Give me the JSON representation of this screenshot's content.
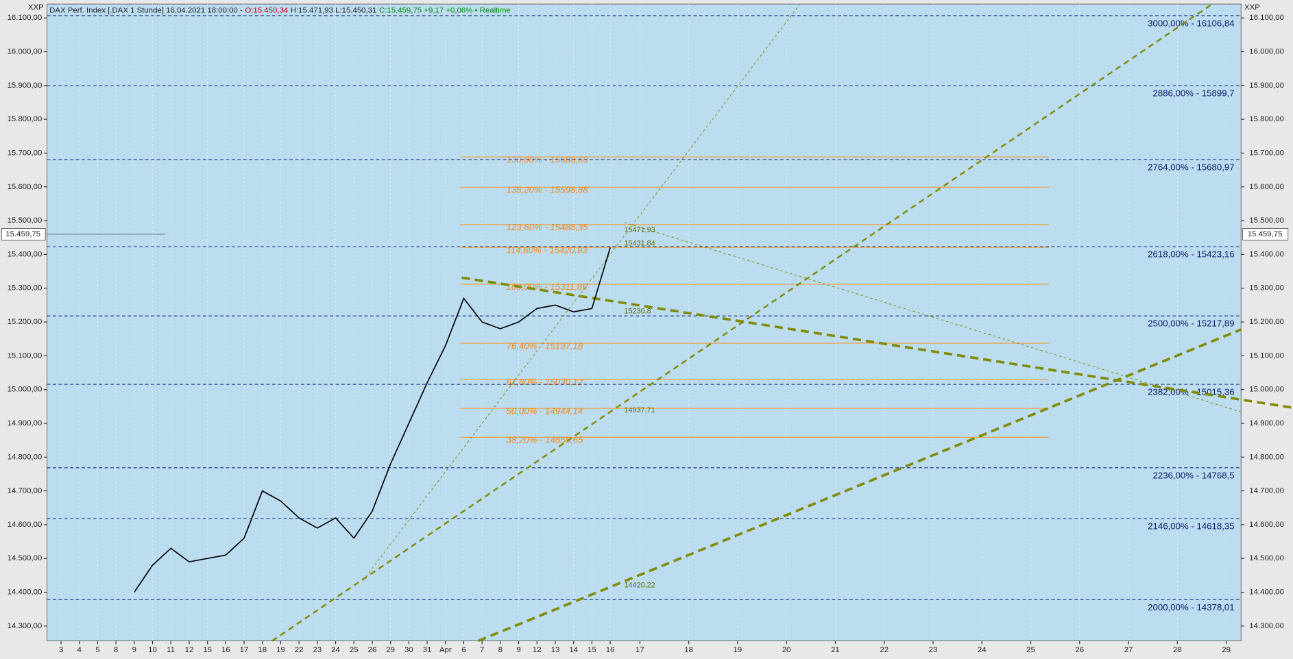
{
  "chart_data": {
    "type": "line",
    "header_parts": [
      {
        "text": "DAX Perf. Index [.DAX 1 Stunde] 16.04.2021 18:00:00 -",
        "color": "#222222"
      },
      {
        "text": "O:15.450,34",
        "color": "#c00000"
      },
      {
        "text": "H:15.471,93 L:15.450,31",
        "color": "#222222"
      },
      {
        "text": "C:15.459,75 +9,17 +0,06% • Realtime",
        "color": "#008a00"
      }
    ],
    "corner_label": "XXP",
    "categories": [
      "3",
      "4",
      "5",
      "8",
      "9",
      "10",
      "11",
      "12",
      "15",
      "16",
      "17",
      "18",
      "19",
      "22",
      "23",
      "24",
      "25",
      "26",
      "29",
      "30",
      "31",
      "Apr",
      "6",
      "7",
      "8",
      "9",
      "12",
      "13",
      "14",
      "15",
      "16",
      "17",
      "18",
      "19",
      "20",
      "21",
      "22",
      "23",
      "24",
      "25",
      "26",
      "27",
      "28",
      "29"
    ],
    "series": [
      {
        "color": "#000000",
        "values": [
          null,
          null,
          null,
          null,
          14400,
          14480,
          14530,
          14490,
          14500,
          14510,
          14560,
          14700,
          14670,
          14620,
          14590,
          14620,
          14560,
          14640,
          14780,
          14900,
          15020,
          15130,
          15270,
          15200,
          15180,
          15200,
          15240,
          15250,
          15230,
          15240,
          15420,
          null,
          null,
          null,
          null,
          null,
          null,
          null,
          null,
          null,
          null,
          null,
          null,
          null
        ]
      }
    ],
    "ylim": [
      14256,
      16141
    ],
    "yticks": [
      {
        "value": 14300,
        "label": "14.300,00"
      },
      {
        "value": 14400,
        "label": "14.400,00"
      },
      {
        "value": 14500,
        "label": "14.500,00"
      },
      {
        "value": 14600,
        "label": "14.600,00"
      },
      {
        "value": 14700,
        "label": "14.700,00"
      },
      {
        "value": 14800,
        "label": "14.800,00"
      },
      {
        "value": 14900,
        "label": "14.900,00"
      },
      {
        "value": 15000,
        "label": "15.000,00"
      },
      {
        "value": 15100,
        "label": "15.100,00"
      },
      {
        "value": 15200,
        "label": "15.200,00"
      },
      {
        "value": 15300,
        "label": "15.300,00"
      },
      {
        "value": 15400,
        "label": "15.400,00"
      },
      {
        "value": 15500,
        "label": "15.500,00"
      },
      {
        "value": 15600,
        "label": "15.600,00"
      },
      {
        "value": 15700,
        "label": "15.700,00"
      },
      {
        "value": 15800,
        "label": "15.800,00"
      },
      {
        "value": 15900,
        "label": "15.900,00"
      },
      {
        "value": 16000,
        "label": "16.000,00"
      },
      {
        "value": 16100,
        "label": "16.100,00"
      }
    ],
    "last_price": {
      "value": 15459.75,
      "label": "15.459,75"
    },
    "fib_levels": [
      {
        "value": 15688.63,
        "label": "130,00% - 15688,63"
      },
      {
        "value": 15598.88,
        "label": "138,20% - 15598,88"
      },
      {
        "value": 15488.35,
        "label": "123,60% - 15488,35"
      },
      {
        "value": 15420.93,
        "label": "114,60% - 15420,93"
      },
      {
        "value": 15311.86,
        "label": "100,00% - 15311,86"
      },
      {
        "value": 15137.18,
        "label": "76,40% - 15137,18"
      },
      {
        "value": 15030.12,
        "label": "61,80% - 15030,12"
      },
      {
        "value": 14944.14,
        "label": "50,00% - 14944,14"
      },
      {
        "value": 14858.65,
        "label": "38,20% - 14858,65"
      }
    ],
    "fib_color": "#f0a040",
    "extension_levels": [
      {
        "value": 16106.84,
        "label": "3000,00% - 16106,84"
      },
      {
        "value": 15899.7,
        "label": "2886,00% - 15899,7"
      },
      {
        "value": 15680.97,
        "label": "2764,00% - 15680,97"
      },
      {
        "value": 15423.16,
        "label": "2618,00% - 15423,16"
      },
      {
        "value": 15217.89,
        "label": "2500,00% - 15217,89"
      },
      {
        "value": 15015.36,
        "label": "2382,00% - 15015,36"
      },
      {
        "value": 14768.5,
        "label": "2236,00% - 14768,5"
      },
      {
        "value": 14618.35,
        "label": "2146,00% - 14618,35"
      },
      {
        "value": 14378.01,
        "label": "2000,00% - 14378,01"
      }
    ],
    "extension_color": "#1a2a7a",
    "annotations": [
      {
        "value": 15471.93,
        "label": "15471,93"
      },
      {
        "value": 15431.84,
        "label": "15431,84"
      },
      {
        "value": 15230.8,
        "label": "15230,8"
      },
      {
        "value": 14937.71,
        "label": "14937,71"
      },
      {
        "value": 14420.22,
        "label": "14420,22"
      }
    ]
  }
}
